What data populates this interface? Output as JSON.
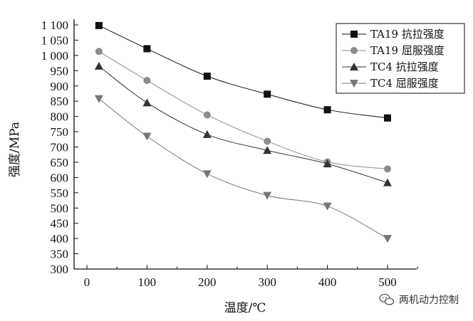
{
  "chart_data": {
    "type": "line",
    "x": [
      20,
      100,
      200,
      300,
      400,
      500
    ],
    "xlabel": "温度/℃",
    "ylabel": "强度/MPa",
    "xlim": [
      0,
      550
    ],
    "ylim": [
      300,
      1100
    ],
    "xticks": [
      0,
      100,
      200,
      300,
      400,
      500
    ],
    "yticks": [
      300,
      350,
      400,
      450,
      500,
      550,
      600,
      650,
      700,
      750,
      800,
      850,
      900,
      950,
      1000,
      1050,
      1100
    ],
    "xtick_labels": [
      "0",
      "100",
      "200",
      "300",
      "400",
      "500"
    ],
    "ytick_labels": [
      "300",
      "350",
      "400",
      "450",
      "500",
      "550",
      "600",
      "650",
      "700",
      "750",
      "800",
      "850",
      "900",
      "950",
      "1 000",
      "1 050",
      "1 100"
    ],
    "legend_position": "top-right",
    "grid": false,
    "series": [
      {
        "name": "TA19 抗拉强度",
        "marker": "square",
        "color": "#111111",
        "values": [
          1098,
          1022,
          932,
          873,
          822,
          795
        ]
      },
      {
        "name": "TA19 屈服强度",
        "marker": "circle",
        "color": "#8c8c8c",
        "values": [
          1013,
          918,
          805,
          719,
          651,
          628
        ]
      },
      {
        "name": "TC4 抗拉强度",
        "marker": "triangle-up",
        "color": "#333333",
        "values": [
          965,
          845,
          741,
          689,
          645,
          583
        ]
      },
      {
        "name": "TC4 屈服强度",
        "marker": "triangle-down",
        "color": "#777777",
        "values": [
          858,
          735,
          612,
          541,
          506,
          400
        ]
      }
    ]
  },
  "watermark": {
    "text": "两机动力控制",
    "icon": "wechat-icon"
  }
}
